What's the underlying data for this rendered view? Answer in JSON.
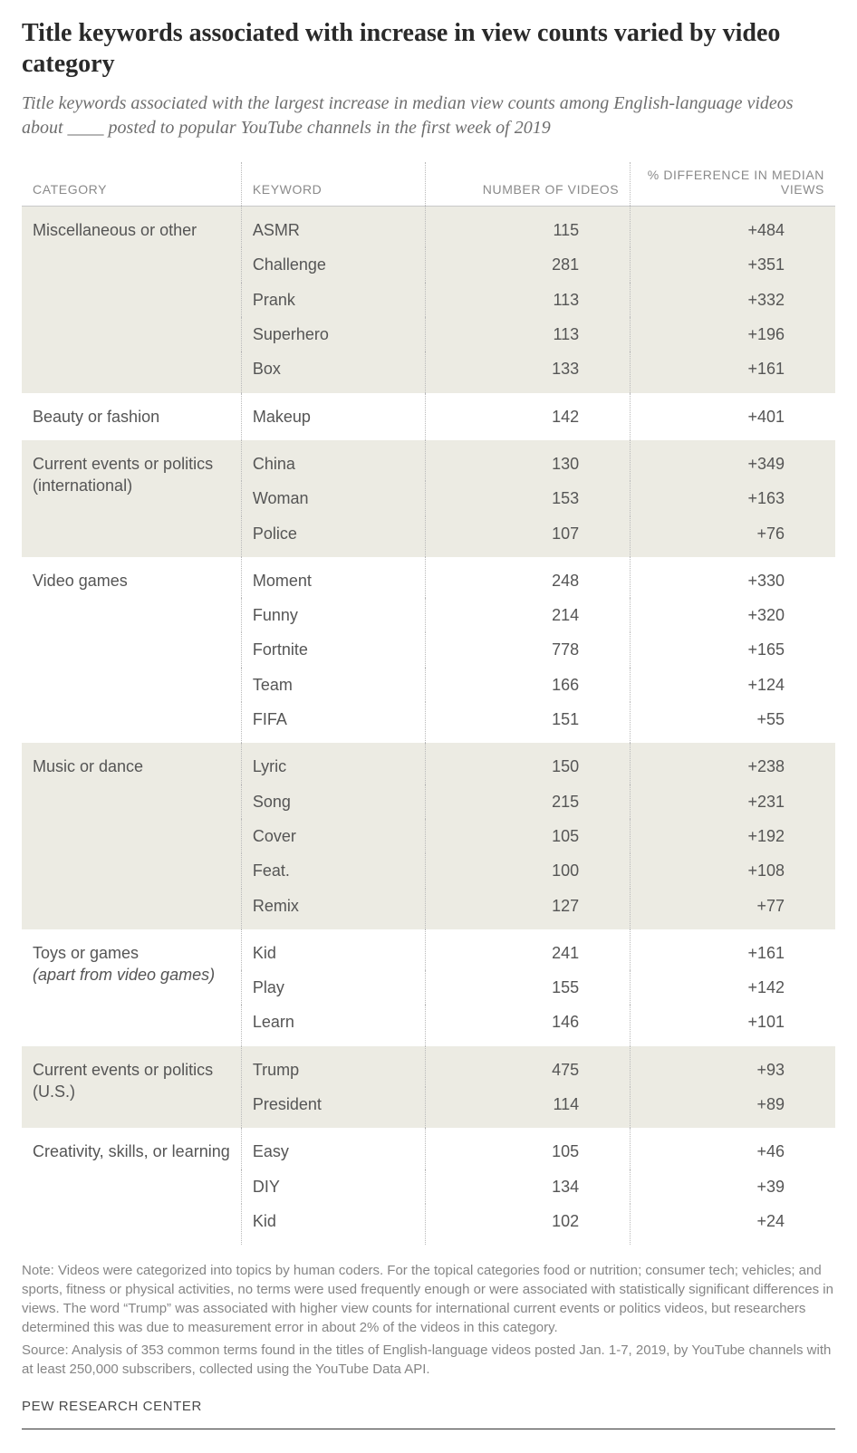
{
  "title": "Title keywords associated with increase in view counts varied by video category",
  "subtitle": "Title keywords associated with the largest increase in median view counts among English-language videos about ____ posted to popular YouTube channels in the first week of 2019",
  "columns": {
    "category": "CATEGORY",
    "keyword": "KEYWORD",
    "number": "NUMBER OF VIDEOS",
    "diff": "% DIFFERENCE IN MEDIAN VIEWS"
  },
  "groups": [
    {
      "category": "Miscellaneous or other",
      "sub_italic": "",
      "rows": [
        {
          "keyword": "ASMR",
          "number": "115",
          "diff": "+484"
        },
        {
          "keyword": "Challenge",
          "number": "281",
          "diff": "+351"
        },
        {
          "keyword": "Prank",
          "number": "113",
          "diff": "+332"
        },
        {
          "keyword": "Superhero",
          "number": "113",
          "diff": "+196"
        },
        {
          "keyword": "Box",
          "number": "133",
          "diff": "+161"
        }
      ]
    },
    {
      "category": "Beauty or fashion",
      "sub_italic": "",
      "rows": [
        {
          "keyword": "Makeup",
          "number": "142",
          "diff": "+401"
        }
      ]
    },
    {
      "category": "Current events or politics (international)",
      "sub_italic": "",
      "rows": [
        {
          "keyword": "China",
          "number": "130",
          "diff": "+349"
        },
        {
          "keyword": "Woman",
          "number": "153",
          "diff": "+163"
        },
        {
          "keyword": "Police",
          "number": "107",
          "diff": "+76"
        }
      ]
    },
    {
      "category": "Video games",
      "sub_italic": "",
      "rows": [
        {
          "keyword": "Moment",
          "number": "248",
          "diff": "+330"
        },
        {
          "keyword": "Funny",
          "number": "214",
          "diff": "+320"
        },
        {
          "keyword": "Fortnite",
          "number": "778",
          "diff": "+165"
        },
        {
          "keyword": "Team",
          "number": "166",
          "diff": "+124"
        },
        {
          "keyword": "FIFA",
          "number": "151",
          "diff": "+55"
        }
      ]
    },
    {
      "category": "Music or dance",
      "sub_italic": "",
      "rows": [
        {
          "keyword": "Lyric",
          "number": "150",
          "diff": "+238"
        },
        {
          "keyword": "Song",
          "number": "215",
          "diff": "+231"
        },
        {
          "keyword": "Cover",
          "number": "105",
          "diff": "+192"
        },
        {
          "keyword": "Feat.",
          "number": "100",
          "diff": "+108"
        },
        {
          "keyword": "Remix",
          "number": "127",
          "diff": "+77"
        }
      ]
    },
    {
      "category": "Toys or games",
      "sub_italic": "(apart from video games)",
      "rows": [
        {
          "keyword": "Kid",
          "number": "241",
          "diff": "+161"
        },
        {
          "keyword": "Play",
          "number": "155",
          "diff": "+142"
        },
        {
          "keyword": "Learn",
          "number": "146",
          "diff": "+101"
        }
      ]
    },
    {
      "category": "Current events or politics (U.S.)",
      "sub_italic": "",
      "rows": [
        {
          "keyword": "Trump",
          "number": "475",
          "diff": "+93"
        },
        {
          "keyword": "President",
          "number": "114",
          "diff": "+89"
        }
      ]
    },
    {
      "category": "Creativity, skills, or learning",
      "sub_italic": "",
      "rows": [
        {
          "keyword": "Easy",
          "number": "105",
          "diff": "+46"
        },
        {
          "keyword": "DIY",
          "number": "134",
          "diff": "+39"
        },
        {
          "keyword": "Kid",
          "number": "102",
          "diff": "+24"
        }
      ]
    }
  ],
  "note": "Note: Videos were categorized into topics by human coders. For the topical categories food or nutrition; consumer tech; vehicles; and sports, fitness or physical activities, no terms were used frequently enough or were associated with statistically significant differences in views. The word “Trump” was associated with higher view counts for international current events or politics videos, but researchers determined this was due to measurement error in about 2% of the videos in this category.",
  "source": "Source: Analysis of 353 common terms found in the titles of English-language videos posted Jan. 1-7, 2019, by YouTube channels with at least 250,000 subscribers, collected using the YouTube Data API.",
  "brand": "PEW RESEARCH CENTER",
  "style": {
    "background_color": "#ffffff",
    "shade_color": "#ecebe3",
    "text_color": "#555555",
    "muted_color": "#8a8a8a",
    "rule_color": "#333333"
  }
}
